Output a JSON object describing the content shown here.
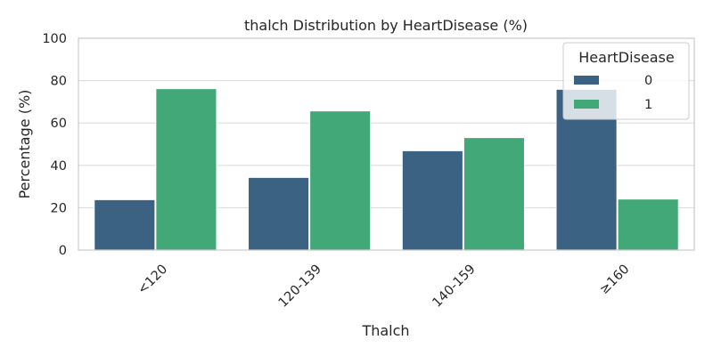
{
  "chart_data": {
    "type": "bar",
    "title": "thalch Distribution by HeartDisease (%)",
    "xlabel": "Thalch",
    "ylabel": "Percentage (%)",
    "ylim": [
      0,
      100
    ],
    "yticks": [
      0,
      20,
      40,
      60,
      80,
      100
    ],
    "grid": true,
    "categories": [
      "<120",
      "120-139",
      "140-159",
      "≥160"
    ],
    "legend": {
      "title": "HeartDisease",
      "placement": "top-right"
    },
    "series": [
      {
        "name": "0",
        "color": "#3b6282",
        "values": [
          23.8,
          34.3,
          46.9,
          75.9
        ]
      },
      {
        "name": "1",
        "color": "#42a877",
        "values": [
          76.2,
          65.7,
          53.1,
          24.1
        ]
      }
    ]
  }
}
